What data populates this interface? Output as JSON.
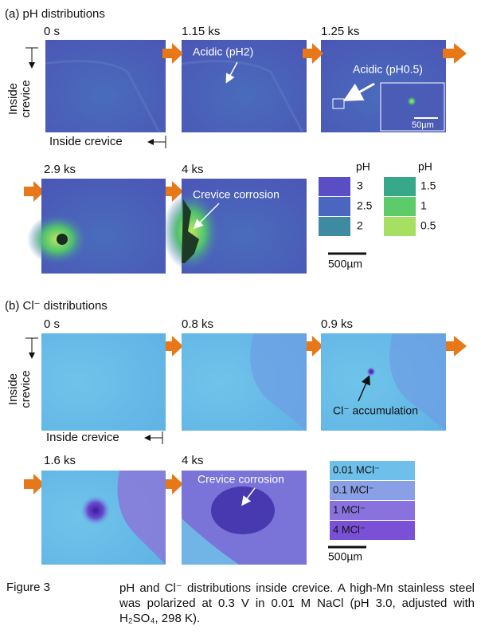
{
  "figure_a": {
    "title": "(a) pH distributions",
    "times": [
      "0 s",
      "1.15 ks",
      "1.25 ks",
      "2.9 ks",
      "4 ks"
    ],
    "annotations": [
      "Acidic (pH2)",
      "Acidic (pH0.5)",
      "50µm",
      "Crevice corrosion"
    ],
    "axis_vertical": "Inside crevice",
    "axis_horizontal": "Inside crevice",
    "legend_header": [
      "pH",
      "pH"
    ],
    "legend": [
      "3",
      "2.5",
      "2",
      "1.5",
      "1",
      "0.5"
    ],
    "scale_bar": "500µm"
  },
  "figure_b": {
    "title": "(b) Cl⁻ distributions",
    "times": [
      "0 s",
      "0.8 ks",
      "0.9 ks",
      "1.6 ks",
      "4 ks"
    ],
    "annotations": [
      "Cl⁻ accumulation",
      "Crevice corrosion"
    ],
    "axis_vertical": "Inside crevice",
    "axis_horizontal": "Inside crevice",
    "legend": [
      "0.01 MCl⁻",
      "0.1 MCl⁻",
      "1 MCl⁻",
      "4 MCl⁻"
    ],
    "scale_bar": "500µm"
  },
  "caption": {
    "label": "Figure 3",
    "text": "pH and Cl⁻ distributions inside crevice. A high-Mn stainless steel was polarized at 0.3 V in 0.01 M NaCl (pH 3.0, adjusted with H₂SO₄, 298 K)."
  }
}
